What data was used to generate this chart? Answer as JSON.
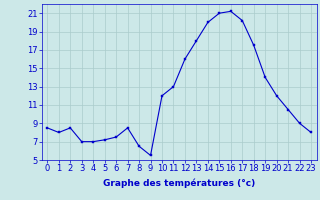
{
  "hours": [
    0,
    1,
    2,
    3,
    4,
    5,
    6,
    7,
    8,
    9,
    10,
    11,
    12,
    13,
    14,
    15,
    16,
    17,
    18,
    19,
    20,
    21,
    22,
    23
  ],
  "temps": [
    8.5,
    8.0,
    8.5,
    7.0,
    7.0,
    7.2,
    7.5,
    8.5,
    6.5,
    5.5,
    12.0,
    13.0,
    16.0,
    18.0,
    20.0,
    21.0,
    21.2,
    20.2,
    17.5,
    14.0,
    12.0,
    10.5,
    9.0,
    8.0
  ],
  "bg_color": "#cce8e8",
  "grid_color": "#aacccc",
  "line_color": "#0000cc",
  "marker_color": "#0000cc",
  "xlabel": "Graphe des températures (°c)",
  "xlabel_color": "#0000cc",
  "xlabel_fontsize": 6.5,
  "tick_color": "#0000cc",
  "tick_fontsize": 6,
  "ylim": [
    5,
    22
  ],
  "yticks": [
    5,
    7,
    9,
    11,
    13,
    15,
    17,
    19,
    21
  ],
  "xlim": [
    -0.5,
    23.5
  ]
}
